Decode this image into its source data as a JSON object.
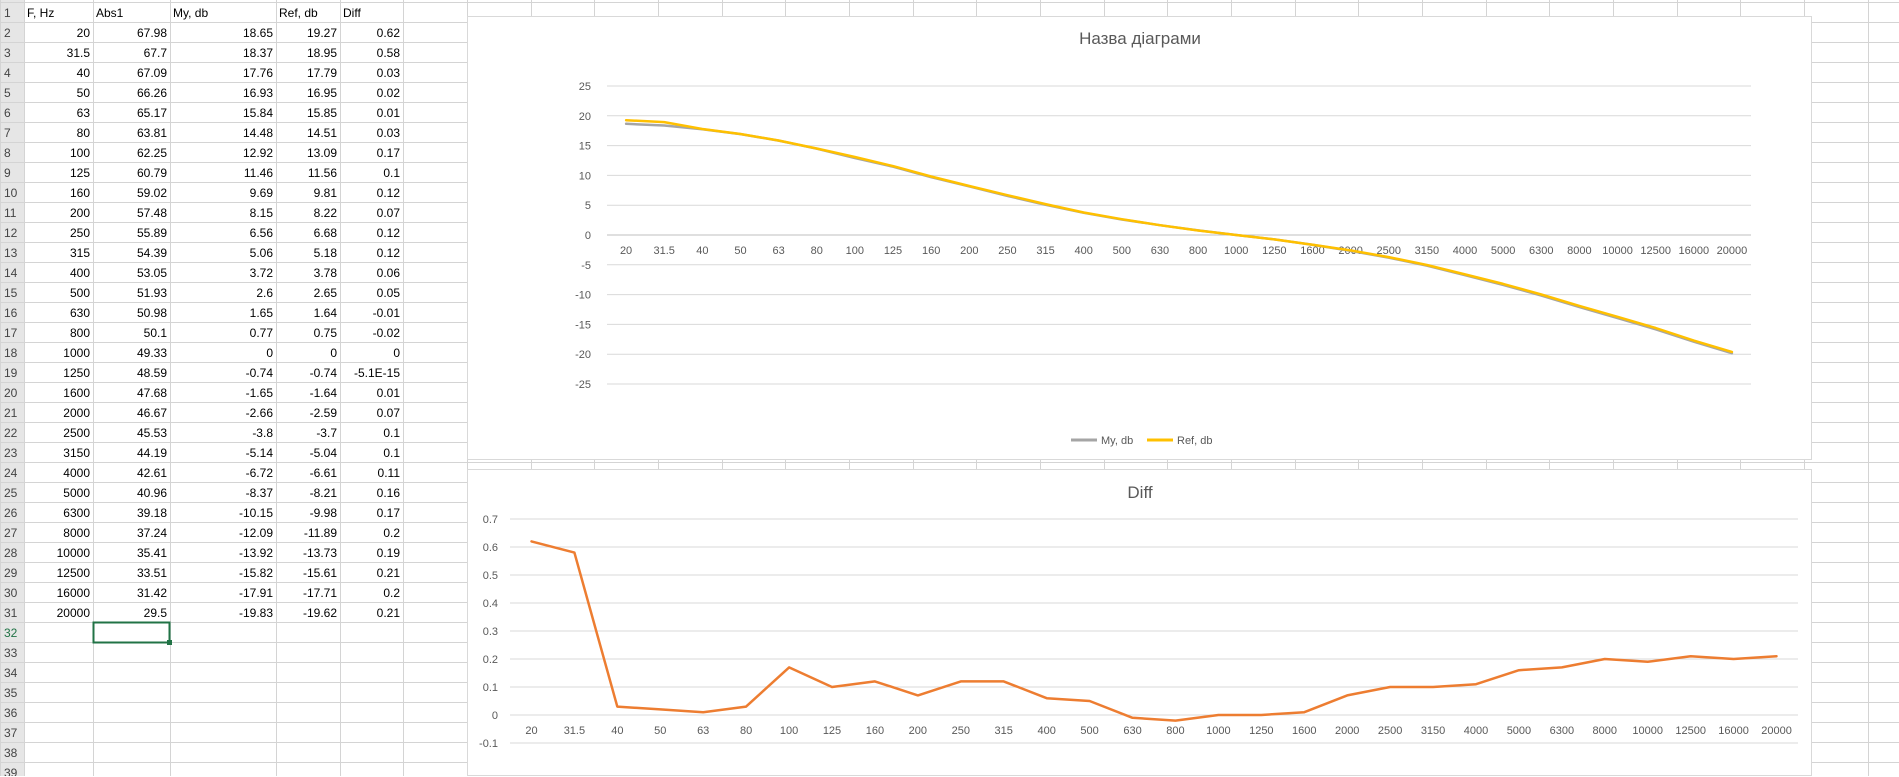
{
  "spreadsheet": {
    "headers": [
      "F, Hz",
      "Abs1",
      "My, db",
      "Ref, db",
      "Diff"
    ],
    "rows": [
      [
        "20",
        "67.98",
        "18.65",
        "19.27",
        "0.62"
      ],
      [
        "31.5",
        "67.7",
        "18.37",
        "18.95",
        "0.58"
      ],
      [
        "40",
        "67.09",
        "17.76",
        "17.79",
        "0.03"
      ],
      [
        "50",
        "66.26",
        "16.93",
        "16.95",
        "0.02"
      ],
      [
        "63",
        "65.17",
        "15.84",
        "15.85",
        "0.01"
      ],
      [
        "80",
        "63.81",
        "14.48",
        "14.51",
        "0.03"
      ],
      [
        "100",
        "62.25",
        "12.92",
        "13.09",
        "0.17"
      ],
      [
        "125",
        "60.79",
        "11.46",
        "11.56",
        "0.1"
      ],
      [
        "160",
        "59.02",
        "9.69",
        "9.81",
        "0.12"
      ],
      [
        "200",
        "57.48",
        "8.15",
        "8.22",
        "0.07"
      ],
      [
        "250",
        "55.89",
        "6.56",
        "6.68",
        "0.12"
      ],
      [
        "315",
        "54.39",
        "5.06",
        "5.18",
        "0.12"
      ],
      [
        "400",
        "53.05",
        "3.72",
        "3.78",
        "0.06"
      ],
      [
        "500",
        "51.93",
        "2.6",
        "2.65",
        "0.05"
      ],
      [
        "630",
        "50.98",
        "1.65",
        "1.64",
        "-0.01"
      ],
      [
        "800",
        "50.1",
        "0.77",
        "0.75",
        "-0.02"
      ],
      [
        "1000",
        "49.33",
        "0",
        "0",
        "0"
      ],
      [
        "1250",
        "48.59",
        "-0.74",
        "-0.74",
        "-5.1E-15"
      ],
      [
        "1600",
        "47.68",
        "-1.65",
        "-1.64",
        "0.01"
      ],
      [
        "2000",
        "46.67",
        "-2.66",
        "-2.59",
        "0.07"
      ],
      [
        "2500",
        "45.53",
        "-3.8",
        "-3.7",
        "0.1"
      ],
      [
        "3150",
        "44.19",
        "-5.14",
        "-5.04",
        "0.1"
      ],
      [
        "4000",
        "42.61",
        "-6.72",
        "-6.61",
        "0.11"
      ],
      [
        "5000",
        "40.96",
        "-8.37",
        "-8.21",
        "0.16"
      ],
      [
        "6300",
        "39.18",
        "-10.15",
        "-9.98",
        "0.17"
      ],
      [
        "8000",
        "37.24",
        "-12.09",
        "-11.89",
        "0.2"
      ],
      [
        "10000",
        "35.41",
        "-13.92",
        "-13.73",
        "0.19"
      ],
      [
        "12500",
        "33.51",
        "-15.82",
        "-15.61",
        "0.21"
      ],
      [
        "16000",
        "31.42",
        "-17.91",
        "-17.71",
        "0.2"
      ],
      [
        "20000",
        "29.5",
        "-19.83",
        "-19.62",
        "0.21"
      ]
    ],
    "row_numbers_total": 39
  },
  "chart_data": [
    {
      "type": "line",
      "title": "Назва діаграми",
      "categories": [
        "20",
        "31.5",
        "40",
        "50",
        "63",
        "80",
        "100",
        "125",
        "160",
        "200",
        "250",
        "315",
        "400",
        "500",
        "630",
        "800",
        "1000",
        "1250",
        "1600",
        "2000",
        "2500",
        "3150",
        "4000",
        "5000",
        "6300",
        "8000",
        "10000",
        "12500",
        "16000",
        "20000"
      ],
      "series": [
        {
          "name": "My, db",
          "color": "#a5a5a5",
          "values": [
            18.65,
            18.37,
            17.76,
            16.93,
            15.84,
            14.48,
            12.92,
            11.46,
            9.69,
            8.15,
            6.56,
            5.06,
            3.72,
            2.6,
            1.65,
            0.77,
            0,
            -0.74,
            -1.65,
            -2.66,
            -3.8,
            -5.14,
            -6.72,
            -8.37,
            -10.15,
            -12.09,
            -13.92,
            -15.82,
            -17.91,
            -19.83
          ]
        },
        {
          "name": "Ref, db",
          "color": "#ffc000",
          "values": [
            19.27,
            18.95,
            17.79,
            16.95,
            15.85,
            14.51,
            13.09,
            11.56,
            9.81,
            8.22,
            6.68,
            5.18,
            3.78,
            2.65,
            1.64,
            0.75,
            0,
            -0.74,
            -1.64,
            -2.59,
            -3.7,
            -5.04,
            -6.61,
            -8.21,
            -9.98,
            -11.89,
            -13.73,
            -15.61,
            -17.71,
            -19.62
          ]
        }
      ],
      "ylim": [
        -25,
        25
      ],
      "yticks": [
        "25",
        "20",
        "15",
        "10",
        "5",
        "0",
        "-5",
        "-10",
        "-15",
        "-20",
        "-25"
      ],
      "grid": true,
      "legend": "bottom"
    },
    {
      "type": "line",
      "title": "Diff",
      "categories": [
        "20",
        "31.5",
        "40",
        "50",
        "63",
        "80",
        "100",
        "125",
        "160",
        "200",
        "250",
        "315",
        "400",
        "500",
        "630",
        "800",
        "1000",
        "1250",
        "1600",
        "2000",
        "2500",
        "3150",
        "4000",
        "5000",
        "6300",
        "8000",
        "10000",
        "12500",
        "16000",
        "20000"
      ],
      "series": [
        {
          "color": "#ed7d31",
          "values": [
            0.62,
            0.58,
            0.03,
            0.02,
            0.01,
            0.03,
            0.17,
            0.1,
            0.12,
            0.07,
            0.12,
            0.12,
            0.06,
            0.05,
            -0.01,
            -0.02,
            0,
            0,
            0.01,
            0.07,
            0.1,
            0.1,
            0.11,
            0.16,
            0.17,
            0.2,
            0.19,
            0.21,
            0.2,
            0.21
          ]
        }
      ],
      "ylim": [
        -0.1,
        0.7
      ],
      "yticks": [
        "0.7",
        "0.6",
        "0.5",
        "0.4",
        "0.3",
        "0.2",
        "0.1",
        "0",
        "-0.1"
      ],
      "grid": true
    }
  ]
}
